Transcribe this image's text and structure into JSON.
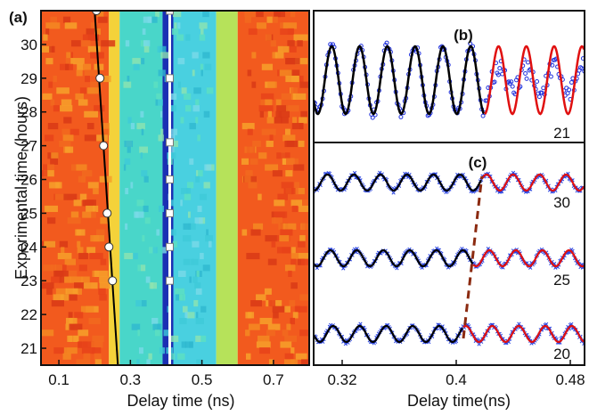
{
  "chart_data": [
    {
      "panel": "(a)",
      "type": "heatmap",
      "xlabel": "Delay time (ns)",
      "ylabel": "Experimental time (hours)",
      "xlim": [
        0.05,
        0.8
      ],
      "ylim": [
        20.5,
        31
      ],
      "xticks": [
        "0.1",
        "0.3",
        "0.5",
        "0.7"
      ],
      "xtick_values": [
        0.1,
        0.3,
        0.5,
        0.7
      ],
      "yticks": [
        "21",
        "22",
        "23",
        "24",
        "25",
        "26",
        "27",
        "28",
        "29",
        "30"
      ],
      "ytick_values": [
        21,
        22,
        23,
        24,
        25,
        26,
        27,
        28,
        29,
        30
      ],
      "colormap_bands": [
        {
          "from": 0.05,
          "to": 0.24,
          "color": "#f25a1e"
        },
        {
          "from": 0.24,
          "to": 0.27,
          "color": "#f4d23a"
        },
        {
          "from": 0.27,
          "to": 0.39,
          "color": "#49d6c9"
        },
        {
          "from": 0.39,
          "to": 0.42,
          "color": "#1b2fb3"
        },
        {
          "from": 0.42,
          "to": 0.54,
          "color": "#49d0e0"
        },
        {
          "from": 0.54,
          "to": 0.6,
          "color": "#b6e25a"
        },
        {
          "from": 0.6,
          "to": 0.8,
          "color": "#f25a1e"
        }
      ],
      "series": [
        {
          "line_from": [
            0.265,
            20.5
          ],
          "line_to": [
            0.2,
            31
          ],
          "markers": [
            [
              0.205,
              31
            ],
            [
              0.215,
              29
            ],
            [
              0.225,
              27
            ],
            [
              0.235,
              25
            ],
            [
              0.24,
              24
            ],
            [
              0.25,
              23
            ]
          ]
        },
        {
          "line_from": [
            0.41,
            20.5
          ],
          "line_to": [
            0.41,
            31
          ],
          "markers": [
            [
              0.41,
              31
            ],
            [
              0.41,
              29
            ],
            [
              0.41,
              27.1
            ],
            [
              0.41,
              26
            ],
            [
              0.41,
              25
            ],
            [
              0.41,
              24
            ],
            [
              0.41,
              23
            ]
          ]
        }
      ]
    },
    {
      "panel": "(b)",
      "type": "line",
      "xlim": [
        0.3,
        0.49
      ],
      "trace_label": "21",
      "fit_black": {
        "x_range": [
          0.3,
          0.42
        ],
        "period": 0.0195,
        "phase": 0.3078
      },
      "fit_red": {
        "x_range": [
          0.42,
          0.49
        ],
        "period": 0.0195,
        "phase": 0.3078
      }
    },
    {
      "panel": "(c)",
      "type": "line",
      "xlabel": "Delay time(ns)",
      "xlim": [
        0.3,
        0.49
      ],
      "xticks": [
        "0.32",
        "0.4",
        "0.48"
      ],
      "xtick_values": [
        0.32,
        0.4,
        0.48
      ],
      "traces": [
        {
          "label": "30",
          "split_x": 0.418
        },
        {
          "label": "25",
          "split_x": 0.412
        },
        {
          "label": "20",
          "split_x": 0.405
        }
      ],
      "period": 0.0186,
      "dashed_line": [
        [
          0.405,
          20
        ],
        [
          0.418,
          30
        ]
      ]
    }
  ]
}
